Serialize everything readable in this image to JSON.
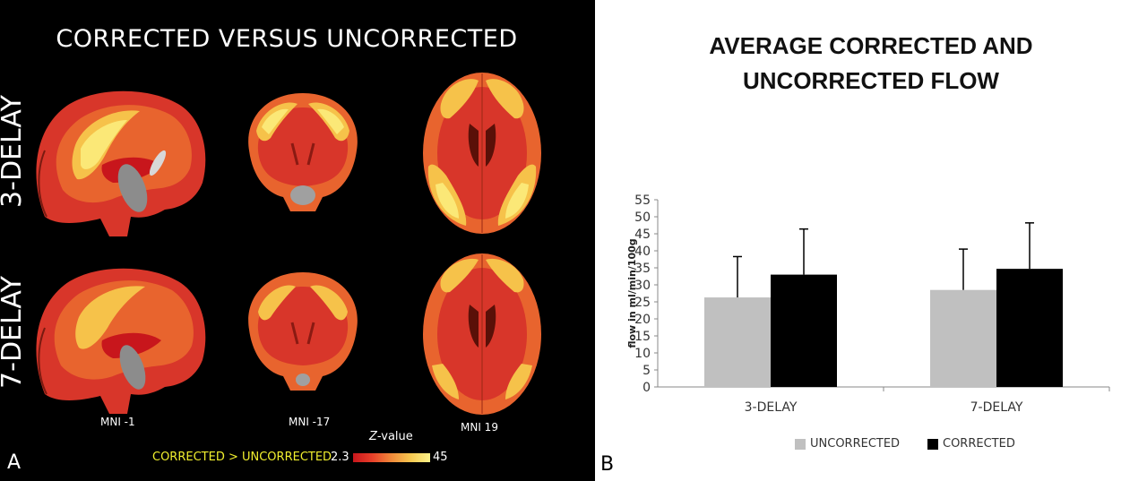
{
  "panel_a": {
    "letter": "A",
    "title": "CORRECTED VERSUS UNCORRECTED",
    "row_labels": [
      "3-DELAY",
      "7-DELAY"
    ],
    "slice_labels": [
      "MNI -1",
      "MNI -17",
      "MNI 19"
    ],
    "colorbar": {
      "title_prefix": "Z",
      "title_suffix": "-value",
      "contrast_label": "CORRECTED > UNCORRECTED",
      "min_label": "2.3",
      "max_label": "45",
      "colors": [
        "#c8161c",
        "#e8402a",
        "#f08a3a",
        "#f6c850",
        "#fbf28a"
      ]
    }
  },
  "panel_b": {
    "letter": "B",
    "title_lines": [
      "AVERAGE CORRECTED AND",
      "UNCORRECTED FLOW"
    ]
  },
  "chart_data": {
    "type": "bar",
    "title": "AVERAGE CORRECTED AND UNCORRECTED FLOW",
    "ylabel": "flow in ml/min/100g",
    "xlabel": "",
    "ylim": [
      0,
      55
    ],
    "yticks": [
      0,
      5,
      10,
      15,
      20,
      25,
      30,
      35,
      40,
      45,
      50,
      55
    ],
    "categories": [
      "3-DELAY",
      "7-DELAY"
    ],
    "series": [
      {
        "name": "UNCORRECTED",
        "color": "#c0c0c0",
        "values": [
          26.3,
          28.5
        ],
        "error": [
          12,
          12
        ]
      },
      {
        "name": "CORRECTED",
        "color": "#000000",
        "values": [
          33,
          34.7
        ],
        "error": [
          13.4,
          13.5
        ]
      }
    ],
    "grid": false,
    "error_bars": "upper",
    "legend_position": "bottom"
  }
}
